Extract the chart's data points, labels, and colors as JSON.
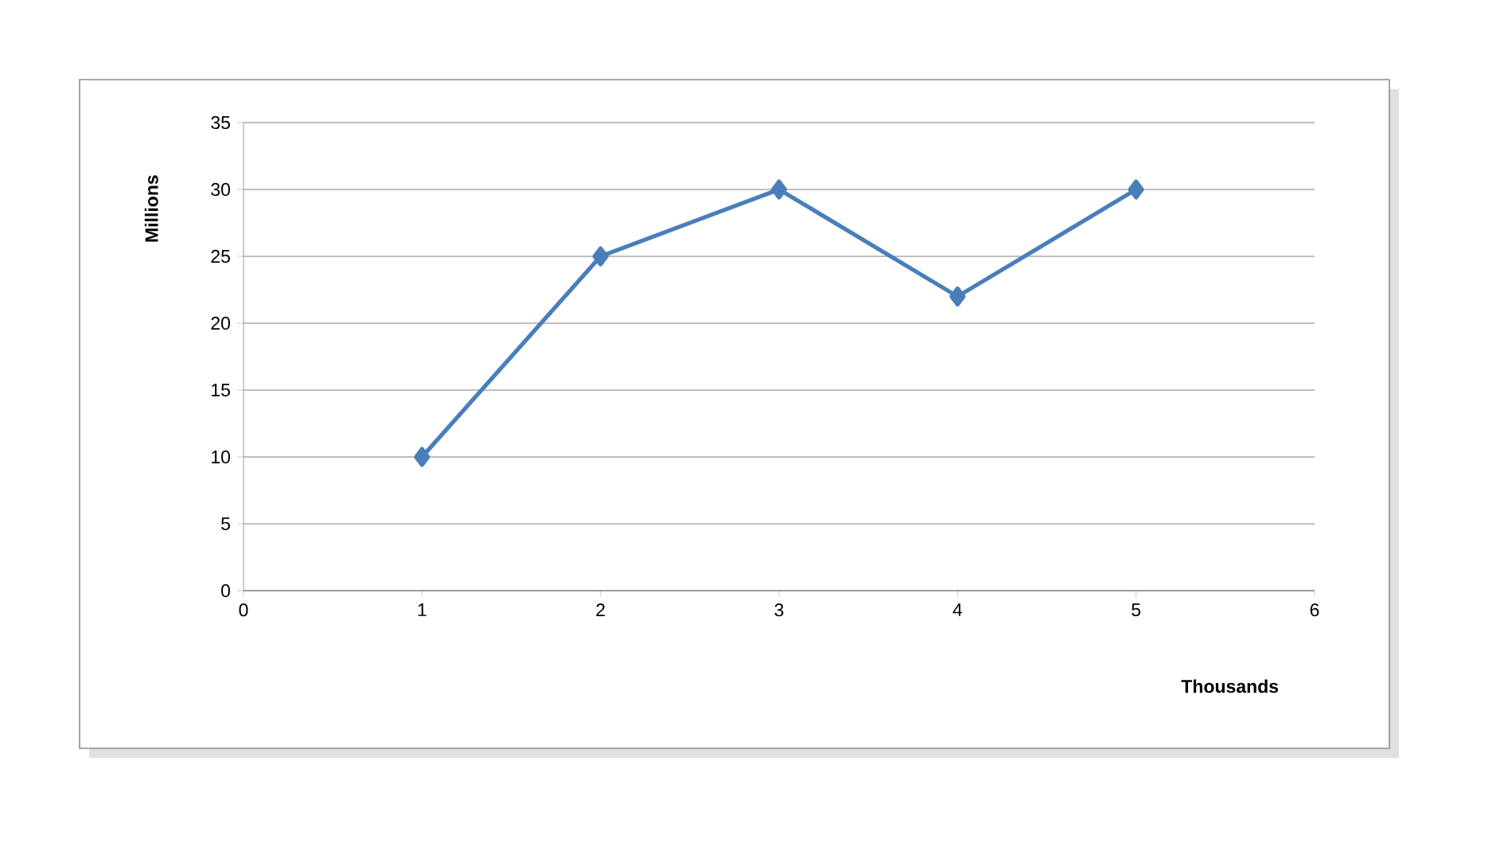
{
  "chart_data": {
    "type": "line",
    "xlabel": "Thousands",
    "ylabel": "Millions",
    "x": [
      1,
      2,
      3,
      4,
      5
    ],
    "values": [
      10,
      25,
      30,
      22,
      30
    ],
    "color": "#4a7ebb",
    "xlim": [
      0,
      6
    ],
    "ylim": [
      0,
      35
    ],
    "xticks": [
      0,
      1,
      2,
      3,
      4,
      5,
      6
    ],
    "yticks": [
      0,
      5,
      10,
      15,
      20,
      25,
      30,
      35
    ],
    "grid": "y",
    "marker": "diamond"
  }
}
